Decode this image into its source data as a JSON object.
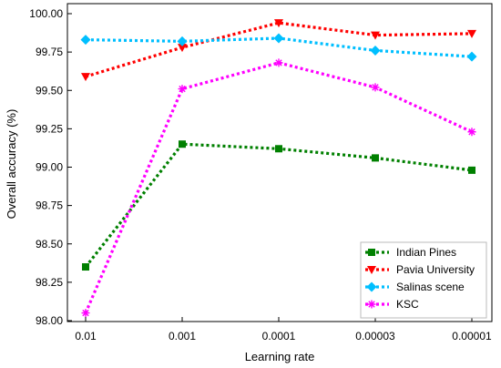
{
  "chart_data": {
    "type": "line",
    "title": "",
    "xlabel": "Learning rate",
    "ylabel": "Overall accuracy (%)",
    "categories": [
      "0.01",
      "0.001",
      "0.0001",
      "0.00003",
      "0.00001"
    ],
    "ylim": [
      98.0,
      100.0
    ],
    "yticks": [
      "98.00",
      "98.25",
      "98.50",
      "98.75",
      "99.00",
      "99.25",
      "99.50",
      "99.75",
      "100.00"
    ],
    "grid": false,
    "legend_position": "bottom-right",
    "series": [
      {
        "name": "Indian Pines",
        "color": "#008000",
        "marker": "square",
        "values": [
          98.35,
          99.15,
          99.12,
          99.06,
          98.98
        ]
      },
      {
        "name": "Pavia University",
        "color": "#ff0000",
        "marker": "triangle-down",
        "values": [
          99.59,
          99.78,
          99.94,
          99.86,
          99.87
        ]
      },
      {
        "name": "Salinas scene",
        "color": "#00bfff",
        "marker": "diamond",
        "values": [
          99.83,
          99.82,
          99.84,
          99.76,
          99.72
        ]
      },
      {
        "name": "KSC",
        "color": "#ff00ff",
        "marker": "star",
        "values": [
          98.05,
          99.51,
          99.68,
          99.52,
          99.23
        ]
      }
    ]
  }
}
